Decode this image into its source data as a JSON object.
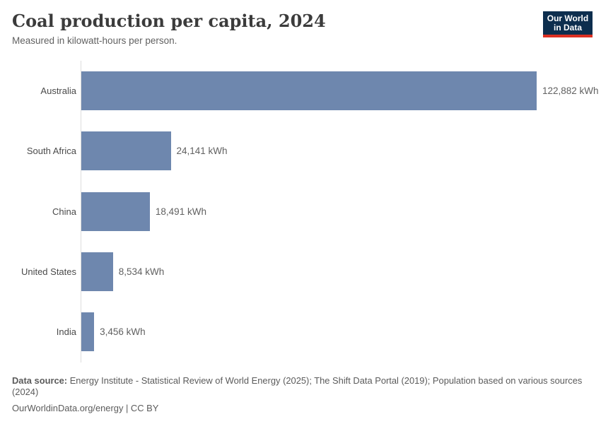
{
  "header": {
    "title": "Coal production per capita, 2024",
    "subtitle": "Measured in kilowatt-hours per person."
  },
  "logo": {
    "line1": "Our World",
    "line2": "in Data",
    "background_color": "#0d2e4e",
    "accent_color": "#dc3022"
  },
  "chart_data": {
    "type": "bar",
    "orientation": "horizontal",
    "title": "Coal production per capita, 2024",
    "xlabel": "",
    "ylabel": "",
    "unit": "kWh",
    "categories": [
      "Australia",
      "South Africa",
      "China",
      "United States",
      "India"
    ],
    "values": [
      122882,
      24141,
      18491,
      8534,
      3456
    ],
    "value_labels": [
      "122,882 kWh",
      "24,141 kWh",
      "18,491 kWh",
      "8,534 kWh",
      "3,456 kWh"
    ],
    "xlim": [
      0,
      143600
    ],
    "grid": "off",
    "legend": "none",
    "bar_color": "#6e87ae",
    "axis_line_color": "#dcdcdc"
  },
  "footer": {
    "data_source_label": "Data source:",
    "data_source_text": "Energy Institute - Statistical Review of World Energy (2025); The Shift Data Portal (2019); Population based on various sources (2024)",
    "credit": "OurWorldinData.org/energy | CC BY"
  }
}
